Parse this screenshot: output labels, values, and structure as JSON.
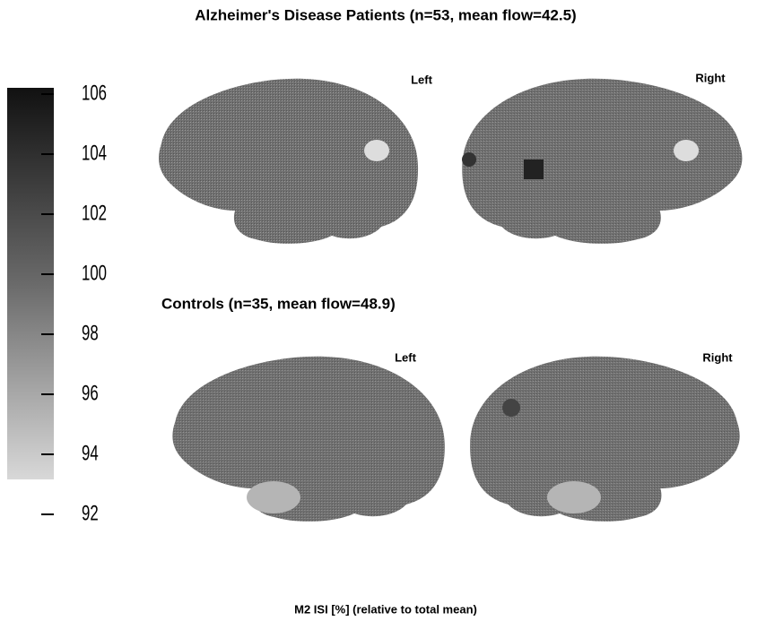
{
  "sections": [
    {
      "title": "Alzheimer's Disease Patients (n=53, mean flow=42.5)",
      "hemispheres": [
        "Left",
        "Right"
      ]
    },
    {
      "title": "Controls (n=35, mean flow=48.9)",
      "hemispheres": [
        "Left",
        "Right"
      ]
    }
  ],
  "colorbar": {
    "ticks": [
      106,
      104,
      102,
      100,
      98,
      96,
      94,
      92
    ]
  },
  "caption": "M2 ISI  [%] (relative to total mean)"
}
